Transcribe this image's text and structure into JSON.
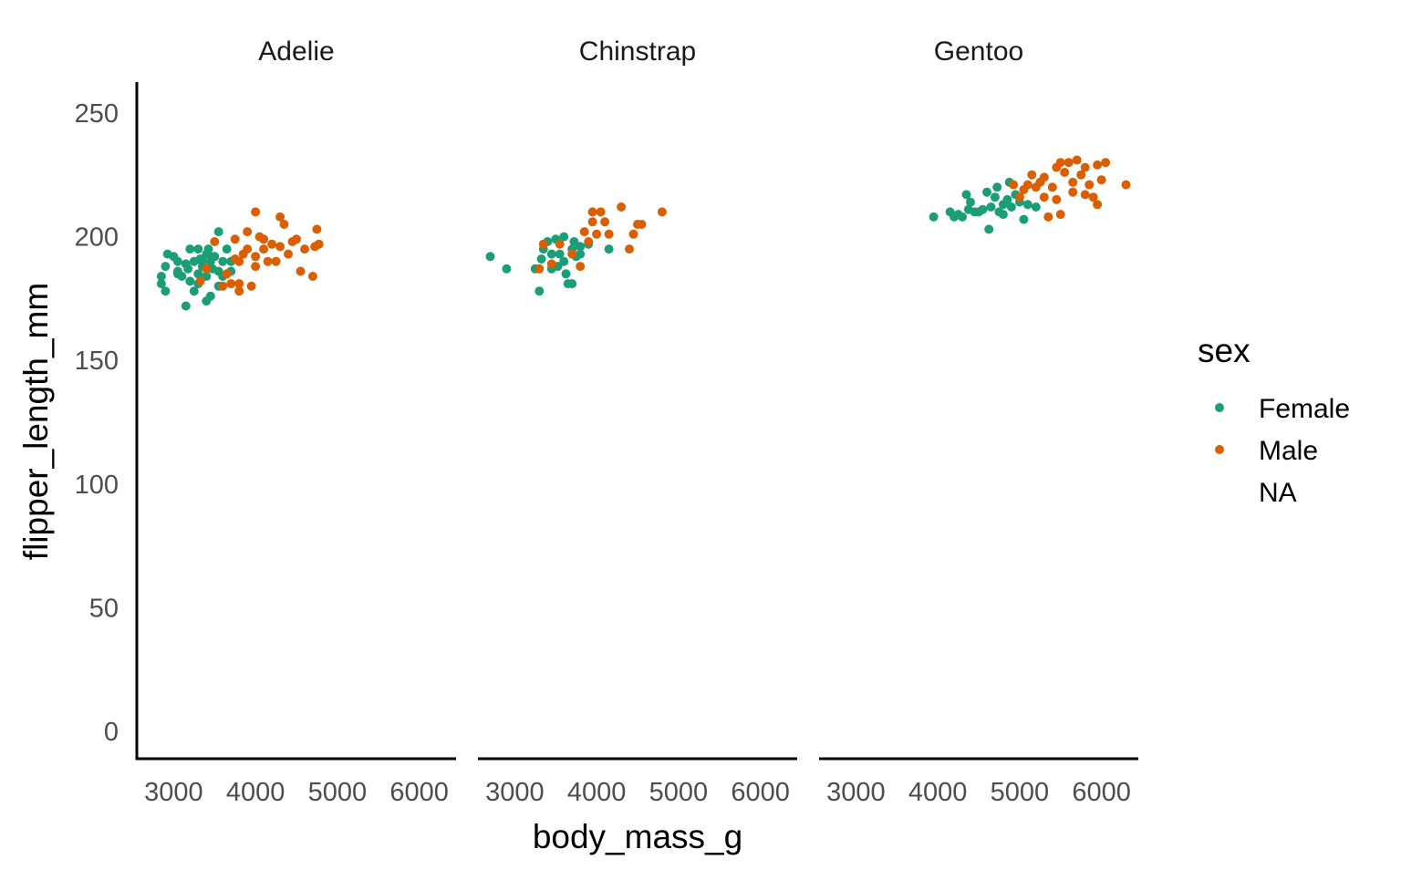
{
  "chart_data": {
    "type": "scatter",
    "facet_by": "species",
    "xlabel": "body_mass_g",
    "ylabel": "flipper_length_mm",
    "xlim": [
      2550,
      6450
    ],
    "ylim": [
      -11,
      262.5
    ],
    "x_ticks": [
      "3000",
      "4000",
      "5000",
      "6000"
    ],
    "x_tick_values": [
      3000,
      4000,
      5000,
      6000
    ],
    "y_ticks": [
      "0",
      "50",
      "100",
      "150",
      "200",
      "250"
    ],
    "y_tick_values": [
      0,
      50,
      100,
      150,
      200,
      250
    ],
    "grid": false,
    "legend": {
      "title": "sex",
      "placement": "right",
      "entries": [
        {
          "label": "Female",
          "color": "#1B9E77"
        },
        {
          "label": "Male",
          "color": "#D95F02"
        },
        {
          "label": "NA",
          "color": "none"
        }
      ]
    },
    "panels": [
      {
        "title": "Adelie",
        "series": [
          {
            "name": "Female",
            "points": [
              [
                2850,
                181
              ],
              [
                2850,
                184
              ],
              [
                2900,
                178
              ],
              [
                2900,
                188
              ],
              [
                2925,
                193
              ],
              [
                3000,
                192
              ],
              [
                3050,
                186
              ],
              [
                3050,
                190
              ],
              [
                3100,
                184
              ],
              [
                3150,
                172
              ],
              [
                3150,
                189
              ],
              [
                3175,
                187
              ],
              [
                3200,
                182
              ],
              [
                3250,
                178
              ],
              [
                3250,
                190
              ],
              [
                3300,
                181
              ],
              [
                3300,
                185
              ],
              [
                3300,
                195
              ],
              [
                3325,
                191
              ],
              [
                3350,
                188
              ],
              [
                3400,
                174
              ],
              [
                3400,
                184
              ],
              [
                3400,
                193
              ],
              [
                3425,
                195
              ],
              [
                3450,
                176
              ],
              [
                3450,
                190
              ],
              [
                3475,
                187
              ],
              [
                3500,
                192
              ],
              [
                3550,
                180
              ],
              [
                3550,
                186
              ],
              [
                3550,
                202
              ],
              [
                3600,
                190
              ],
              [
                3650,
                195
              ],
              [
                3700,
                186
              ],
              [
                3700,
                190
              ],
              [
                3200,
                195
              ],
              [
                3050,
                185
              ],
              [
                3350,
                190
              ],
              [
                3450,
                192
              ],
              [
                3600,
                184
              ]
            ]
          },
          {
            "name": "Male",
            "points": [
              [
                3325,
                182
              ],
              [
                3400,
                187
              ],
              [
                3500,
                198
              ],
              [
                3600,
                180
              ],
              [
                3650,
                185
              ],
              [
                3700,
                181
              ],
              [
                3750,
                199
              ],
              [
                3800,
                181
              ],
              [
                3800,
                178
              ],
              [
                3800,
                190
              ],
              [
                3900,
                202
              ],
              [
                3900,
                195
              ],
              [
                3950,
                180
              ],
              [
                4000,
                210
              ],
              [
                4000,
                192
              ],
              [
                4050,
                200
              ],
              [
                4100,
                195
              ],
              [
                4150,
                190
              ],
              [
                4200,
                197
              ],
              [
                4250,
                190
              ],
              [
                4300,
                208
              ],
              [
                4300,
                196
              ],
              [
                4350,
                205
              ],
              [
                4400,
                193
              ],
              [
                4450,
                198
              ],
              [
                4500,
                199
              ],
              [
                4550,
                186
              ],
              [
                4600,
                195
              ],
              [
                4700,
                184
              ],
              [
                4725,
                196
              ],
              [
                4750,
                203
              ],
              [
                4775,
                197
              ],
              [
                3750,
                191
              ],
              [
                3850,
                193
              ],
              [
                4000,
                188
              ],
              [
                4100,
                199
              ]
            ]
          }
        ]
      },
      {
        "title": "Chinstrap",
        "series": [
          {
            "name": "Female",
            "points": [
              [
                2700,
                192
              ],
              [
                2900,
                187
              ],
              [
                3250,
                187
              ],
              [
                3300,
                178
              ],
              [
                3325,
                191
              ],
              [
                3350,
                195
              ],
              [
                3400,
                198
              ],
              [
                3450,
                187
              ],
              [
                3500,
                199
              ],
              [
                3550,
                193
              ],
              [
                3600,
                190
              ],
              [
                3625,
                185
              ],
              [
                3650,
                181
              ],
              [
                3700,
                195
              ],
              [
                3700,
                181
              ],
              [
                3725,
                198
              ],
              [
                3750,
                192
              ],
              [
                3800,
                196
              ],
              [
                3800,
                193
              ],
              [
                3900,
                197
              ],
              [
                4150,
                195
              ],
              [
                3525,
                188
              ],
              [
                3600,
                200
              ],
              [
                3450,
                193
              ]
            ]
          },
          {
            "name": "Male",
            "points": [
              [
                3300,
                187
              ],
              [
                3350,
                197
              ],
              [
                3450,
                189
              ],
              [
                3550,
                197
              ],
              [
                3700,
                193
              ],
              [
                3850,
                202
              ],
              [
                3900,
                198
              ],
              [
                3950,
                210
              ],
              [
                3950,
                206
              ],
              [
                4000,
                201
              ],
              [
                4050,
                210
              ],
              [
                4100,
                206
              ],
              [
                4150,
                201
              ],
              [
                4300,
                212
              ],
              [
                4400,
                195
              ],
              [
                4450,
                201
              ],
              [
                4500,
                205
              ],
              [
                4550,
                205
              ],
              [
                4800,
                210
              ],
              [
                3800,
                188
              ]
            ]
          }
        ]
      },
      {
        "title": "Gentoo",
        "series": [
          {
            "name": "Female",
            "points": [
              [
                3950,
                208
              ],
              [
                4150,
                210
              ],
              [
                4200,
                208
              ],
              [
                4250,
                209
              ],
              [
                4300,
                208
              ],
              [
                4350,
                217
              ],
              [
                4375,
                211
              ],
              [
                4400,
                214
              ],
              [
                4450,
                210
              ],
              [
                4500,
                210
              ],
              [
                4550,
                211
              ],
              [
                4600,
                218
              ],
              [
                4625,
                203
              ],
              [
                4650,
                212
              ],
              [
                4700,
                216
              ],
              [
                4725,
                220
              ],
              [
                4750,
                210
              ],
              [
                4800,
                213
              ],
              [
                4850,
                215
              ],
              [
                4875,
                222
              ],
              [
                4900,
                212
              ],
              [
                5000,
                214
              ],
              [
                5050,
                207
              ],
              [
                5100,
                213
              ],
              [
                5200,
                212
              ],
              [
                4800,
                209
              ],
              [
                4950,
                217
              ]
            ]
          },
          {
            "name": "Male",
            "points": [
              [
                4925,
                221
              ],
              [
                5000,
                216
              ],
              [
                5050,
                219
              ],
              [
                5100,
                221
              ],
              [
                5150,
                225
              ],
              [
                5200,
                220
              ],
              [
                5250,
                222
              ],
              [
                5300,
                216
              ],
              [
                5350,
                208
              ],
              [
                5400,
                220
              ],
              [
                5450,
                228
              ],
              [
                5500,
                209
              ],
              [
                5550,
                226
              ],
              [
                5600,
                230
              ],
              [
                5650,
                222
              ],
              [
                5700,
                231
              ],
              [
                5750,
                225
              ],
              [
                5800,
                228
              ],
              [
                5850,
                221
              ],
              [
                5900,
                216
              ],
              [
                5950,
                213
              ],
              [
                6000,
                223
              ],
              [
                6050,
                230
              ],
              [
                6300,
                221
              ],
              [
                5300,
                224
              ],
              [
                5450,
                215
              ],
              [
                5500,
                230
              ],
              [
                5650,
                218
              ],
              [
                5800,
                217
              ],
              [
                5950,
                229
              ]
            ]
          }
        ]
      }
    ]
  }
}
